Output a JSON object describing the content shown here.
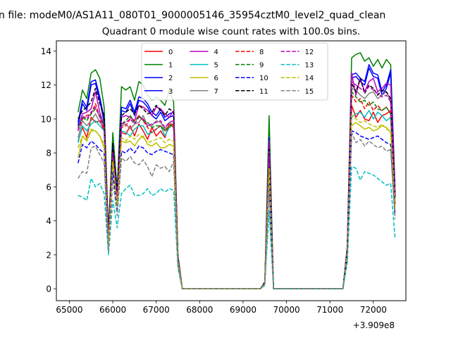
{
  "figure": {
    "suptitle": "n file: modeM0/AS1A11_080T01_9000005146_35954cztM0_level2_quad_clean",
    "offset_label": "+3.909e8"
  },
  "chart_data": {
    "type": "line",
    "title": "Quadrant 0 module wise count rates with 100.0s bins.",
    "xlabel": "",
    "ylabel": "",
    "xlim": [
      64700,
      72750
    ],
    "ylim": [
      -0.7,
      14.6
    ],
    "x_offset": 390900000,
    "x_ticks": [
      65000,
      66000,
      67000,
      68000,
      69000,
      70000,
      71000,
      72000
    ],
    "y_ticks": [
      0,
      2,
      4,
      6,
      8,
      10,
      12,
      14
    ],
    "grid": false,
    "legend": {
      "placement": "top-center",
      "columns": 4
    },
    "x": [
      65200,
      65300,
      65400,
      65500,
      65600,
      65700,
      65800,
      65900,
      66000,
      66100,
      66200,
      66300,
      66400,
      66500,
      66600,
      66700,
      66800,
      66900,
      67000,
      67100,
      67200,
      67300,
      67400,
      67500,
      67600,
      69400,
      69500,
      69600,
      69700,
      71300,
      71400,
      71500,
      71600,
      71700,
      71800,
      71900,
      72000,
      72100,
      72200,
      72300,
      72400,
      72500
    ],
    "series": [
      {
        "name": "0",
        "color": "#ff0000",
        "dash": "solid",
        "values": [
          8.7,
          9.5,
          8.9,
          10.1,
          9.8,
          9.9,
          9.3,
          3.4,
          8.3,
          5.2,
          9.2,
          9.1,
          9.6,
          9.0,
          9.7,
          9.3,
          8.8,
          9.5,
          9.0,
          9.3,
          8.9,
          9.7,
          9.5,
          1.7,
          0,
          0,
          0.3,
          7.0,
          0,
          0,
          2.1,
          10.8,
          10.1,
          10.5,
          10.0,
          9.9,
          10.4,
          9.8,
          10.2,
          10.3,
          10.5,
          4.9
        ]
      },
      {
        "name": "1",
        "color": "#008000",
        "dash": "solid",
        "values": [
          10.4,
          11.7,
          11.2,
          12.7,
          12.9,
          12.4,
          10.7,
          3.3,
          9.2,
          5.8,
          11.9,
          11.7,
          11.9,
          11.1,
          12.2,
          12.0,
          11.4,
          11.1,
          11.3,
          11.1,
          10.8,
          11.7,
          11.0,
          2.0,
          0,
          0,
          0.4,
          10.2,
          0,
          0,
          2.5,
          13.6,
          13.8,
          13.9,
          13.4,
          13.6,
          13.1,
          13.5,
          13.0,
          13.5,
          13.2,
          6.0
        ]
      },
      {
        "name": "2",
        "color": "#0000ff",
        "dash": "solid",
        "values": [
          9.8,
          11.1,
          10.7,
          12.2,
          12.3,
          11.3,
          10.0,
          3.1,
          8.4,
          5.6,
          10.7,
          10.6,
          11.1,
          10.4,
          11.3,
          11.2,
          10.9,
          10.4,
          10.2,
          10.6,
          10.1,
          10.3,
          10.4,
          1.9,
          0,
          0,
          0.4,
          8.9,
          0,
          0,
          2.4,
          12.6,
          12.7,
          12.4,
          12.2,
          13.2,
          12.7,
          12.6,
          11.6,
          12.0,
          12.9,
          5.6
        ]
      },
      {
        "name": "3",
        "color": "#0000ff",
        "dash": "solid",
        "values": [
          9.6,
          10.9,
          10.5,
          12.0,
          12.1,
          11.1,
          9.8,
          3.0,
          8.2,
          5.5,
          10.5,
          10.4,
          10.9,
          10.2,
          11.1,
          11.0,
          10.7,
          10.2,
          10.0,
          10.4,
          9.9,
          10.1,
          10.2,
          1.8,
          0,
          0,
          0.3,
          8.7,
          0,
          0,
          2.3,
          12.4,
          12.5,
          12.2,
          12.0,
          13.0,
          12.5,
          12.4,
          11.4,
          11.8,
          12.7,
          5.4
        ]
      },
      {
        "name": "4",
        "color": "#bf00bf",
        "dash": "solid",
        "values": [
          9.4,
          10.3,
          10.4,
          10.6,
          11.6,
          10.4,
          9.6,
          2.9,
          8.0,
          5.4,
          10.1,
          10.2,
          10.1,
          9.9,
          10.8,
          10.7,
          10.5,
          10.2,
          10.7,
          10.6,
          10.3,
          10.1,
          10.5,
          1.8,
          0,
          0,
          0.4,
          8.7,
          0,
          0,
          2.4,
          12.7,
          11.4,
          12.4,
          11.6,
          12.2,
          12.4,
          11.6,
          11.8,
          12.1,
          12.0,
          5.7
        ]
      },
      {
        "name": "5",
        "color": "#00bfbf",
        "dash": "solid",
        "values": [
          8.6,
          9.6,
          9.3,
          9.7,
          9.9,
          9.6,
          9.3,
          2.9,
          7.8,
          5.0,
          9.3,
          9.2,
          9.0,
          9.4,
          9.6,
          9.6,
          9.1,
          9.2,
          9.4,
          9.6,
          9.0,
          9.5,
          9.7,
          1.7,
          0,
          0,
          0.3,
          7.6,
          0,
          0,
          2.2,
          10.1,
          10.3,
          10.4,
          10.1,
          10.5,
          10.0,
          10.4,
          10.2,
          9.9,
          10.1,
          5.0
        ]
      },
      {
        "name": "6",
        "color": "#bfbf00",
        "dash": "solid",
        "values": [
          7.7,
          9.0,
          8.7,
          9.3,
          9.3,
          9.0,
          8.3,
          2.7,
          7.4,
          4.9,
          8.7,
          8.6,
          8.7,
          8.4,
          8.8,
          9.0,
          8.5,
          8.4,
          8.6,
          8.3,
          8.3,
          8.5,
          8.4,
          1.6,
          0,
          0,
          0.3,
          6.7,
          0,
          0,
          2.1,
          9.6,
          9.8,
          9.6,
          9.4,
          9.5,
          9.3,
          9.4,
          9.6,
          9.5,
          9.2,
          4.6
        ]
      },
      {
        "name": "7",
        "color": "#808080",
        "dash": "solid",
        "values": [
          8.9,
          9.9,
          9.6,
          9.9,
          10.3,
          9.8,
          9.5,
          2.8,
          7.9,
          5.1,
          9.6,
          9.7,
          9.4,
          9.7,
          9.8,
          10.2,
          9.6,
          9.6,
          9.9,
          9.8,
          9.4,
          9.8,
          9.6,
          1.7,
          0,
          0,
          0.3,
          8.1,
          0,
          0,
          2.3,
          11.8,
          11.7,
          11.4,
          11.2,
          11.5,
          11.6,
          11.2,
          11.4,
          11.6,
          11.1,
          5.6
        ]
      },
      {
        "name": "8",
        "color": "#ff0000",
        "dash": "dashed",
        "values": [
          9.3,
          10.0,
          10.2,
          10.3,
          10.9,
          10.1,
          9.4,
          2.8,
          8.1,
          5.2,
          9.5,
          9.6,
          10.0,
          9.9,
          10.2,
          9.9,
          9.5,
          9.2,
          9.4,
          9.6,
          9.3,
          9.6,
          9.7,
          1.7,
          0,
          0,
          0.3,
          7.7,
          0,
          0,
          2.2,
          11.4,
          11.0,
          11.2,
          10.6,
          11.0,
          10.5,
          10.8,
          10.5,
          10.7,
          10.3,
          5.0
        ]
      },
      {
        "name": "9",
        "color": "#008000",
        "dash": "dashed",
        "values": [
          9.5,
          10.1,
          9.9,
          10.3,
          10.6,
          10.2,
          9.6,
          2.9,
          7.9,
          5.2,
          9.7,
          9.9,
          10.2,
          9.8,
          10.2,
          9.9,
          9.8,
          9.5,
          9.6,
          9.6,
          9.3,
          9.5,
          9.8,
          1.8,
          0,
          0,
          0.3,
          7.8,
          0,
          0,
          2.3,
          11.6,
          11.3,
          11.0,
          11.1,
          10.8,
          11.0,
          10.6,
          10.5,
          10.7,
          10.3,
          5.1
        ]
      },
      {
        "name": "10",
        "color": "#0000ff",
        "dash": "dashed",
        "values": [
          7.4,
          8.5,
          8.3,
          8.7,
          8.5,
          8.2,
          8.0,
          2.3,
          6.9,
          4.5,
          8.1,
          8.0,
          8.3,
          8.0,
          8.4,
          8.3,
          8.0,
          7.9,
          8.1,
          8.2,
          8.1,
          8.0,
          7.9,
          1.5,
          0,
          0,
          0.3,
          6.2,
          0,
          0,
          1.9,
          9.3,
          9.2,
          9.0,
          8.9,
          8.8,
          8.9,
          9.0,
          8.8,
          8.6,
          8.5,
          4.3
        ]
      },
      {
        "name": "11",
        "color": "#000000",
        "dash": "dashed",
        "values": [
          10.0,
          10.5,
          10.7,
          11.0,
          11.8,
          10.9,
          10.2,
          3.0,
          8.6,
          5.6,
          10.2,
          10.4,
          10.6,
          10.3,
          10.8,
          10.6,
          10.3,
          10.4,
          10.8,
          10.5,
          10.2,
          10.6,
          10.4,
          1.9,
          0,
          0,
          0.4,
          8.2,
          0,
          0,
          2.4,
          12.1,
          11.6,
          12.4,
          11.5,
          12.0,
          11.8,
          11.4,
          11.7,
          11.6,
          11.2,
          5.4
        ]
      },
      {
        "name": "12",
        "color": "#bf00bf",
        "dash": "dashed",
        "values": [
          9.3,
          10.2,
          10.0,
          10.4,
          10.7,
          10.1,
          9.5,
          2.9,
          8.0,
          5.3,
          9.7,
          9.8,
          10.0,
          9.7,
          10.1,
          10.0,
          9.6,
          9.7,
          9.8,
          9.9,
          9.5,
          9.8,
          9.9,
          1.8,
          0,
          0,
          0.3,
          7.9,
          0,
          0,
          2.3,
          12.2,
          12.0,
          11.8,
          11.6,
          11.9,
          11.7,
          11.5,
          11.3,
          11.4,
          11.0,
          5.5
        ]
      },
      {
        "name": "13",
        "color": "#00bfbf",
        "dash": "dashed",
        "values": [
          5.5,
          5.4,
          5.2,
          6.5,
          6.0,
          6.2,
          5.6,
          2.0,
          5.2,
          3.6,
          5.6,
          5.9,
          6.1,
          5.5,
          5.5,
          5.6,
          5.9,
          5.5,
          5.6,
          5.9,
          5.7,
          5.9,
          5.8,
          1.2,
          0,
          0,
          0.2,
          4.6,
          0,
          0,
          1.5,
          7.2,
          7.1,
          6.4,
          6.9,
          6.8,
          6.7,
          6.5,
          6.3,
          6.1,
          6.2,
          3.0
        ]
      },
      {
        "name": "14",
        "color": "#bfbf00",
        "dash": "dashed",
        "values": [
          8.3,
          9.0,
          8.8,
          9.4,
          9.3,
          9.0,
          8.5,
          2.6,
          7.5,
          4.9,
          8.9,
          8.7,
          9.0,
          8.8,
          9.1,
          8.9,
          8.6,
          8.7,
          8.8,
          8.9,
          8.6,
          8.8,
          8.7,
          1.6,
          0,
          0,
          0.3,
          7.1,
          0,
          0,
          2.1,
          10.2,
          10.0,
          9.8,
          9.9,
          9.7,
          9.6,
          9.5,
          9.7,
          9.4,
          9.3,
          4.7
        ]
      },
      {
        "name": "15",
        "color": "#808080",
        "dash": "dashed",
        "values": [
          6.5,
          6.9,
          6.8,
          8.3,
          8.4,
          7.9,
          7.4,
          2.2,
          6.4,
          4.3,
          7.7,
          7.5,
          7.8,
          7.4,
          7.3,
          7.6,
          7.2,
          6.6,
          7.3,
          7.1,
          7.2,
          6.9,
          7.5,
          1.4,
          0,
          0,
          0.3,
          5.9,
          0,
          0,
          1.8,
          9.2,
          8.6,
          8.8,
          8.4,
          8.7,
          8.5,
          8.3,
          8.4,
          8.1,
          8.2,
          4.1
        ]
      }
    ]
  }
}
